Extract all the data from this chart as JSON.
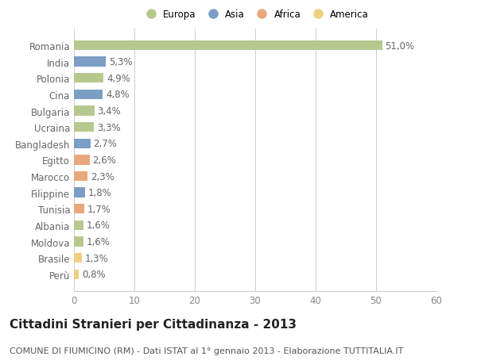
{
  "countries": [
    "Romania",
    "India",
    "Polonia",
    "Cina",
    "Bulgaria",
    "Ucraina",
    "Bangladesh",
    "Egitto",
    "Marocco",
    "Filippine",
    "Tunisia",
    "Albania",
    "Moldova",
    "Brasile",
    "Perù"
  ],
  "values": [
    51.0,
    5.3,
    4.9,
    4.8,
    3.4,
    3.3,
    2.7,
    2.6,
    2.3,
    1.8,
    1.7,
    1.6,
    1.6,
    1.3,
    0.8
  ],
  "regions": [
    "Europa",
    "Asia",
    "Europa",
    "Asia",
    "Europa",
    "Europa",
    "Asia",
    "Africa",
    "Africa",
    "Asia",
    "Africa",
    "Europa",
    "Europa",
    "America",
    "America"
  ],
  "region_colors": {
    "Europa": "#b5c98e",
    "Asia": "#7b9ec4",
    "Africa": "#e8a87c",
    "America": "#f0d080"
  },
  "legend_order": [
    "Europa",
    "Asia",
    "Africa",
    "America"
  ],
  "title": "Cittadini Stranieri per Cittadinanza - 2013",
  "subtitle": "COMUNE DI FIUMICINO (RM) - Dati ISTAT al 1° gennaio 2013 - Elaborazione TUTTITALIA.IT",
  "xlim": [
    0,
    60
  ],
  "xticks": [
    0,
    10,
    20,
    30,
    40,
    50,
    60
  ],
  "background_color": "#ffffff",
  "grid_color": "#cccccc",
  "bar_height": 0.6,
  "label_fontsize": 8.5,
  "title_fontsize": 11,
  "subtitle_fontsize": 8
}
